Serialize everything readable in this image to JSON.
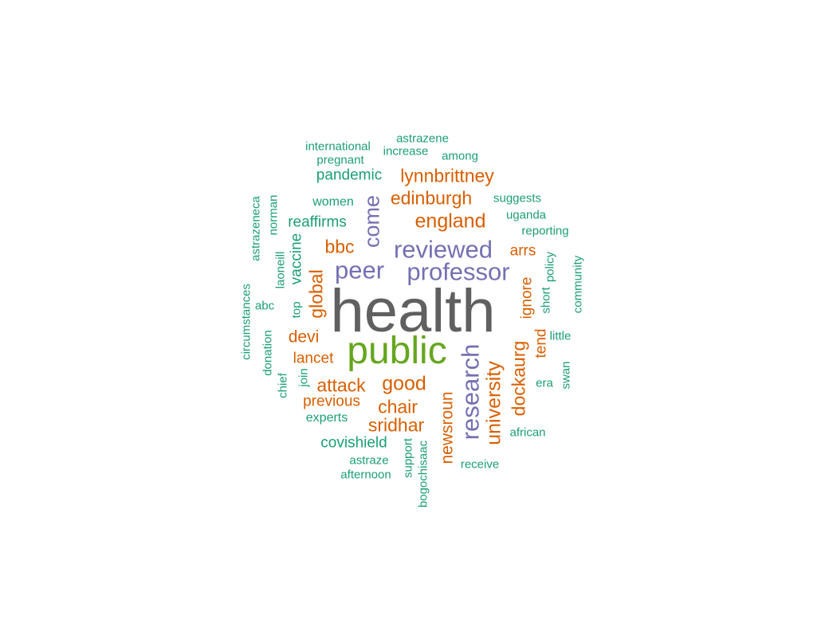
{
  "colors": {
    "gray": "#606060",
    "green": "#66a61e",
    "purple": "#7570b3",
    "orange": "#d95f02",
    "teal": "#1b9e77"
  },
  "words": [
    {
      "text": "health",
      "color": "gray"
    },
    {
      "text": "public",
      "color": "green"
    },
    {
      "text": "professor",
      "color": "purple"
    },
    {
      "text": "reviewed",
      "color": "purple"
    },
    {
      "text": "peer",
      "color": "purple"
    },
    {
      "text": "research",
      "color": "purple"
    },
    {
      "text": "come",
      "color": "purple"
    },
    {
      "text": "england",
      "color": "orange"
    },
    {
      "text": "edinburgh",
      "color": "orange"
    },
    {
      "text": "lynnbrittney",
      "color": "orange"
    },
    {
      "text": "bbc",
      "color": "orange"
    },
    {
      "text": "global",
      "color": "orange"
    },
    {
      "text": "good",
      "color": "orange"
    },
    {
      "text": "attack",
      "color": "orange"
    },
    {
      "text": "chair",
      "color": "orange"
    },
    {
      "text": "sridhar",
      "color": "orange"
    },
    {
      "text": "university",
      "color": "orange"
    },
    {
      "text": "dockaurg",
      "color": "orange"
    },
    {
      "text": "newsroun",
      "color": "orange"
    },
    {
      "text": "devi",
      "color": "orange"
    },
    {
      "text": "lancet",
      "color": "orange"
    },
    {
      "text": "previous",
      "color": "orange"
    },
    {
      "text": "arrs",
      "color": "orange"
    },
    {
      "text": "ignore",
      "color": "orange"
    },
    {
      "text": "tend",
      "color": "orange"
    },
    {
      "text": "vaccine",
      "color": "teal"
    },
    {
      "text": "reaffirms",
      "color": "teal"
    },
    {
      "text": "pandemic",
      "color": "teal"
    },
    {
      "text": "covishield",
      "color": "teal"
    },
    {
      "text": "women",
      "color": "teal"
    },
    {
      "text": "experts",
      "color": "teal"
    },
    {
      "text": "international",
      "color": "teal"
    },
    {
      "text": "pregnant",
      "color": "teal"
    },
    {
      "text": "astrazene",
      "color": "teal"
    },
    {
      "text": "increase",
      "color": "teal"
    },
    {
      "text": "among",
      "color": "teal"
    },
    {
      "text": "suggests",
      "color": "teal"
    },
    {
      "text": "uganda",
      "color": "teal"
    },
    {
      "text": "reporting",
      "color": "teal"
    },
    {
      "text": "policy",
      "color": "teal"
    },
    {
      "text": "short",
      "color": "teal"
    },
    {
      "text": "community",
      "color": "teal"
    },
    {
      "text": "little",
      "color": "teal"
    },
    {
      "text": "swan",
      "color": "teal"
    },
    {
      "text": "era",
      "color": "teal"
    },
    {
      "text": "african",
      "color": "teal"
    },
    {
      "text": "receive",
      "color": "teal"
    },
    {
      "text": "support",
      "color": "teal"
    },
    {
      "text": "bogochisaac",
      "color": "teal"
    },
    {
      "text": "astraze",
      "color": "teal"
    },
    {
      "text": "afternoon",
      "color": "teal"
    },
    {
      "text": "join",
      "color": "teal"
    },
    {
      "text": "chief",
      "color": "teal"
    },
    {
      "text": "donation",
      "color": "teal"
    },
    {
      "text": "circumstances",
      "color": "teal"
    },
    {
      "text": "abc",
      "color": "teal"
    },
    {
      "text": "top",
      "color": "teal"
    },
    {
      "text": "laoneill",
      "color": "teal"
    },
    {
      "text": "norman",
      "color": "teal"
    },
    {
      "text": "astrazeneca",
      "color": "teal"
    }
  ]
}
